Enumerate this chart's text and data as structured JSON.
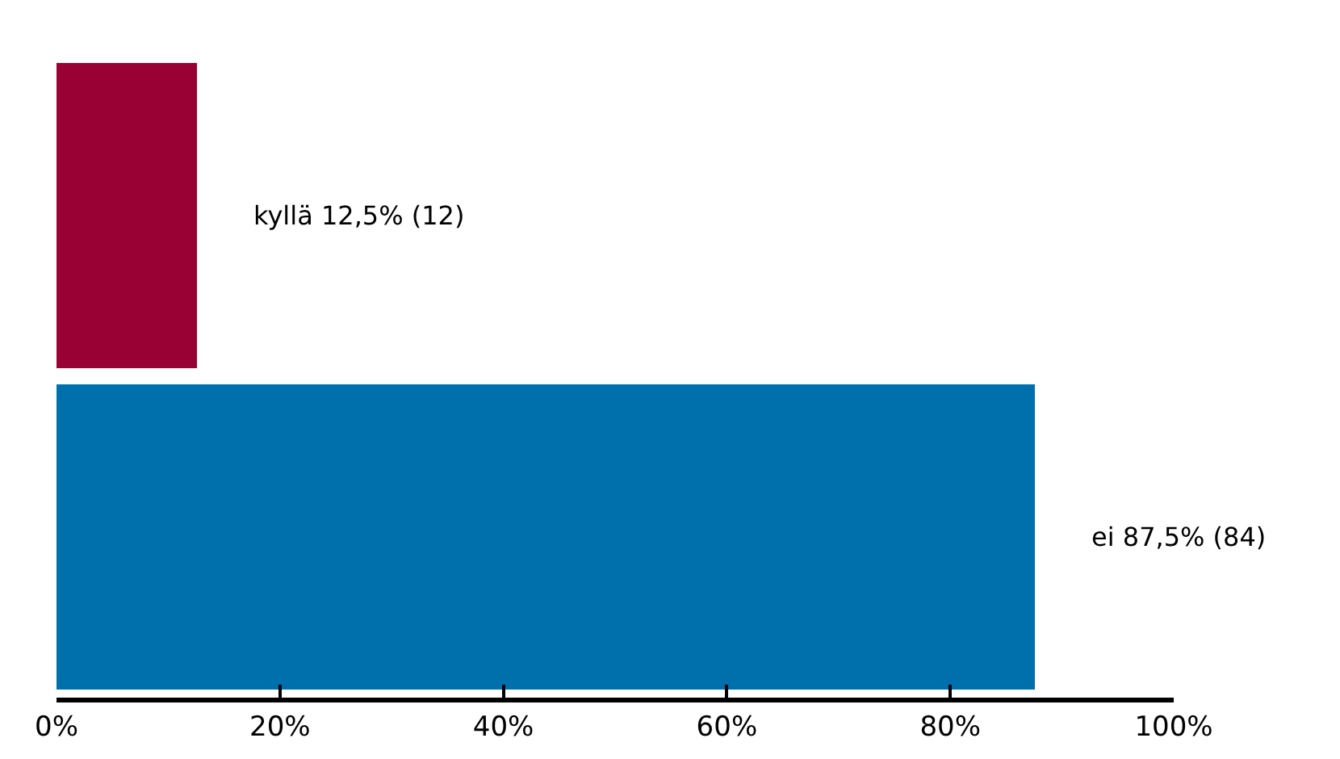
{
  "chart_data": {
    "type": "bar",
    "orientation": "horizontal",
    "categories": [
      null,
      null
    ],
    "values": [
      12.5,
      87.5
    ],
    "colors": [
      "#990033",
      "#0070ad"
    ],
    "value_labels": [
      "kyllä 12,5% (12)",
      "ei 87,5% (84)"
    ],
    "xlim": [
      0,
      100
    ],
    "xticks": [
      {
        "value": 0,
        "label": "0%"
      },
      {
        "value": 20,
        "label": "20%"
      },
      {
        "value": 40,
        "label": "40%"
      },
      {
        "value": 60,
        "label": "60%"
      },
      {
        "value": 80,
        "label": "80%"
      },
      {
        "value": 100,
        "label": "100%"
      }
    ],
    "tick_labels": "x"
  }
}
